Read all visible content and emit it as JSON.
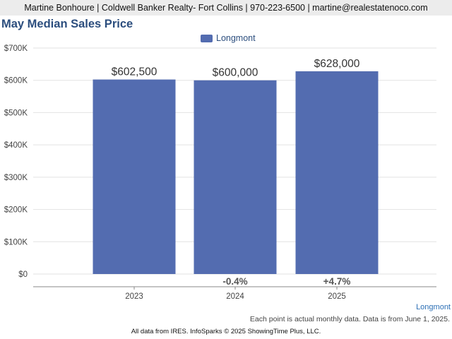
{
  "header": {
    "agent_line": "Martine Bonhoure | Coldwell Banker Realty- Fort Collins | 970-223-6500 | martine@realestatenoco.com"
  },
  "colors": {
    "bar": "#536cb0",
    "title": "#2c4e7e",
    "grid": "#e2e2e2",
    "axis": "#888888"
  },
  "chart_data": {
    "type": "bar",
    "title": "May Median Sales Price",
    "categories": [
      "2023",
      "2024",
      "2025"
    ],
    "series": [
      {
        "name": "Longmont",
        "values": [
          602500,
          600000,
          628000
        ],
        "value_labels": [
          "$602,500",
          "$600,000",
          "$628,000"
        ],
        "change_labels": [
          "",
          "-0.4%",
          "+4.7%"
        ]
      }
    ],
    "y_ticks": [
      0,
      100000,
      200000,
      300000,
      400000,
      500000,
      600000,
      700000
    ],
    "y_tick_labels": [
      "$0",
      "$100K",
      "$200K",
      "$300K",
      "$400K",
      "$500K",
      "$600K",
      "$700K"
    ],
    "ylim": [
      0,
      700000
    ],
    "xlabel": "",
    "ylabel": "",
    "grid": true,
    "legend_position": "top-center"
  },
  "footer": {
    "series_label": "Longmont",
    "note": "Each point is actual monthly data. Data is from June 1, 2025.",
    "credit": "All data from IRES. InfoSparks © 2025 ShowingTime Plus, LLC."
  }
}
